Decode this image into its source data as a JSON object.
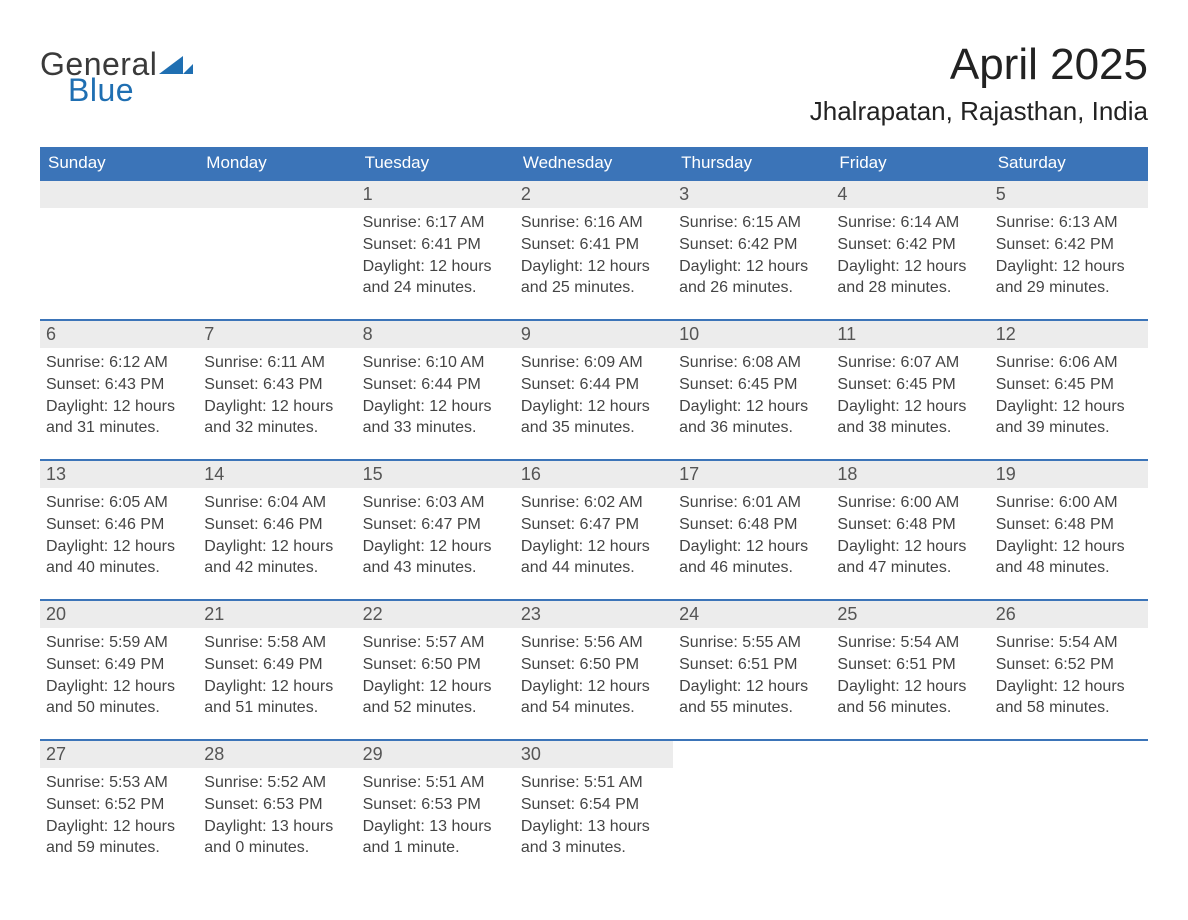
{
  "brand": {
    "general": "General",
    "blue": "Blue"
  },
  "title": "April 2025",
  "location": "Jhalrapatan, Rajasthan, India",
  "colors": {
    "header_blue": "#3b74b8",
    "daynum_bg": "#ececec",
    "logo_blue": "#1f6fb2",
    "logo_dark": "#3a3a3a",
    "text": "#333333"
  },
  "weekdays": [
    "Sunday",
    "Monday",
    "Tuesday",
    "Wednesday",
    "Thursday",
    "Friday",
    "Saturday"
  ],
  "weeks": [
    [
      null,
      null,
      {
        "n": "1",
        "sr": "6:17 AM",
        "ss": "6:41 PM",
        "dl": "12 hours and 24 minutes."
      },
      {
        "n": "2",
        "sr": "6:16 AM",
        "ss": "6:41 PM",
        "dl": "12 hours and 25 minutes."
      },
      {
        "n": "3",
        "sr": "6:15 AM",
        "ss": "6:42 PM",
        "dl": "12 hours and 26 minutes."
      },
      {
        "n": "4",
        "sr": "6:14 AM",
        "ss": "6:42 PM",
        "dl": "12 hours and 28 minutes."
      },
      {
        "n": "5",
        "sr": "6:13 AM",
        "ss": "6:42 PM",
        "dl": "12 hours and 29 minutes."
      }
    ],
    [
      {
        "n": "6",
        "sr": "6:12 AM",
        "ss": "6:43 PM",
        "dl": "12 hours and 31 minutes."
      },
      {
        "n": "7",
        "sr": "6:11 AM",
        "ss": "6:43 PM",
        "dl": "12 hours and 32 minutes."
      },
      {
        "n": "8",
        "sr": "6:10 AM",
        "ss": "6:44 PM",
        "dl": "12 hours and 33 minutes."
      },
      {
        "n": "9",
        "sr": "6:09 AM",
        "ss": "6:44 PM",
        "dl": "12 hours and 35 minutes."
      },
      {
        "n": "10",
        "sr": "6:08 AM",
        "ss": "6:45 PM",
        "dl": "12 hours and 36 minutes."
      },
      {
        "n": "11",
        "sr": "6:07 AM",
        "ss": "6:45 PM",
        "dl": "12 hours and 38 minutes."
      },
      {
        "n": "12",
        "sr": "6:06 AM",
        "ss": "6:45 PM",
        "dl": "12 hours and 39 minutes."
      }
    ],
    [
      {
        "n": "13",
        "sr": "6:05 AM",
        "ss": "6:46 PM",
        "dl": "12 hours and 40 minutes."
      },
      {
        "n": "14",
        "sr": "6:04 AM",
        "ss": "6:46 PM",
        "dl": "12 hours and 42 minutes."
      },
      {
        "n": "15",
        "sr": "6:03 AM",
        "ss": "6:47 PM",
        "dl": "12 hours and 43 minutes."
      },
      {
        "n": "16",
        "sr": "6:02 AM",
        "ss": "6:47 PM",
        "dl": "12 hours and 44 minutes."
      },
      {
        "n": "17",
        "sr": "6:01 AM",
        "ss": "6:48 PM",
        "dl": "12 hours and 46 minutes."
      },
      {
        "n": "18",
        "sr": "6:00 AM",
        "ss": "6:48 PM",
        "dl": "12 hours and 47 minutes."
      },
      {
        "n": "19",
        "sr": "6:00 AM",
        "ss": "6:48 PM",
        "dl": "12 hours and 48 minutes."
      }
    ],
    [
      {
        "n": "20",
        "sr": "5:59 AM",
        "ss": "6:49 PM",
        "dl": "12 hours and 50 minutes."
      },
      {
        "n": "21",
        "sr": "5:58 AM",
        "ss": "6:49 PM",
        "dl": "12 hours and 51 minutes."
      },
      {
        "n": "22",
        "sr": "5:57 AM",
        "ss": "6:50 PM",
        "dl": "12 hours and 52 minutes."
      },
      {
        "n": "23",
        "sr": "5:56 AM",
        "ss": "6:50 PM",
        "dl": "12 hours and 54 minutes."
      },
      {
        "n": "24",
        "sr": "5:55 AM",
        "ss": "6:51 PM",
        "dl": "12 hours and 55 minutes."
      },
      {
        "n": "25",
        "sr": "5:54 AM",
        "ss": "6:51 PM",
        "dl": "12 hours and 56 minutes."
      },
      {
        "n": "26",
        "sr": "5:54 AM",
        "ss": "6:52 PM",
        "dl": "12 hours and 58 minutes."
      }
    ],
    [
      {
        "n": "27",
        "sr": "5:53 AM",
        "ss": "6:52 PM",
        "dl": "12 hours and 59 minutes."
      },
      {
        "n": "28",
        "sr": "5:52 AM",
        "ss": "6:53 PM",
        "dl": "13 hours and 0 minutes."
      },
      {
        "n": "29",
        "sr": "5:51 AM",
        "ss": "6:53 PM",
        "dl": "13 hours and 1 minute."
      },
      {
        "n": "30",
        "sr": "5:51 AM",
        "ss": "6:54 PM",
        "dl": "13 hours and 3 minutes."
      },
      null,
      null,
      null
    ]
  ],
  "labels": {
    "sunrise": "Sunrise: ",
    "sunset": "Sunset: ",
    "daylight": "Daylight: "
  }
}
